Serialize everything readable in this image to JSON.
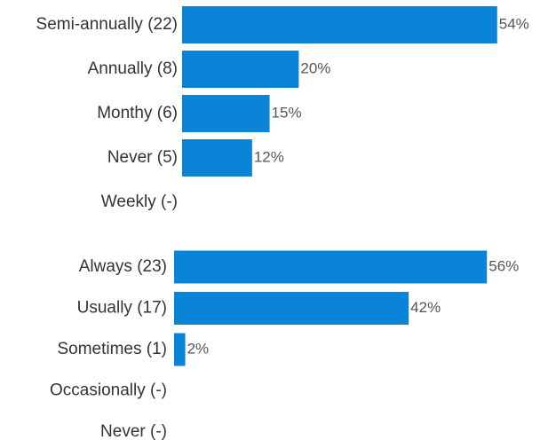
{
  "chart_data": [
    {
      "type": "bar",
      "categories": [
        "Semi-annually (22)",
        "Annually (8)",
        "Monthy (6)",
        "Never (5)",
        "Weekly (-)"
      ],
      "values": [
        54,
        20,
        15,
        12,
        null
      ],
      "value_labels": [
        "54%",
        "20%",
        "15%",
        "12%",
        null
      ],
      "color": "#0a84d6"
    },
    {
      "type": "bar",
      "categories": [
        "Always (23)",
        "Usually (17)",
        "Sometimes (1)",
        "Occasionally (-)",
        "Never (-)"
      ],
      "values": [
        56,
        42,
        2,
        null,
        null
      ],
      "value_labels": [
        "56%",
        "42%",
        "2%",
        null,
        null
      ],
      "color": "#0a84d6"
    }
  ]
}
